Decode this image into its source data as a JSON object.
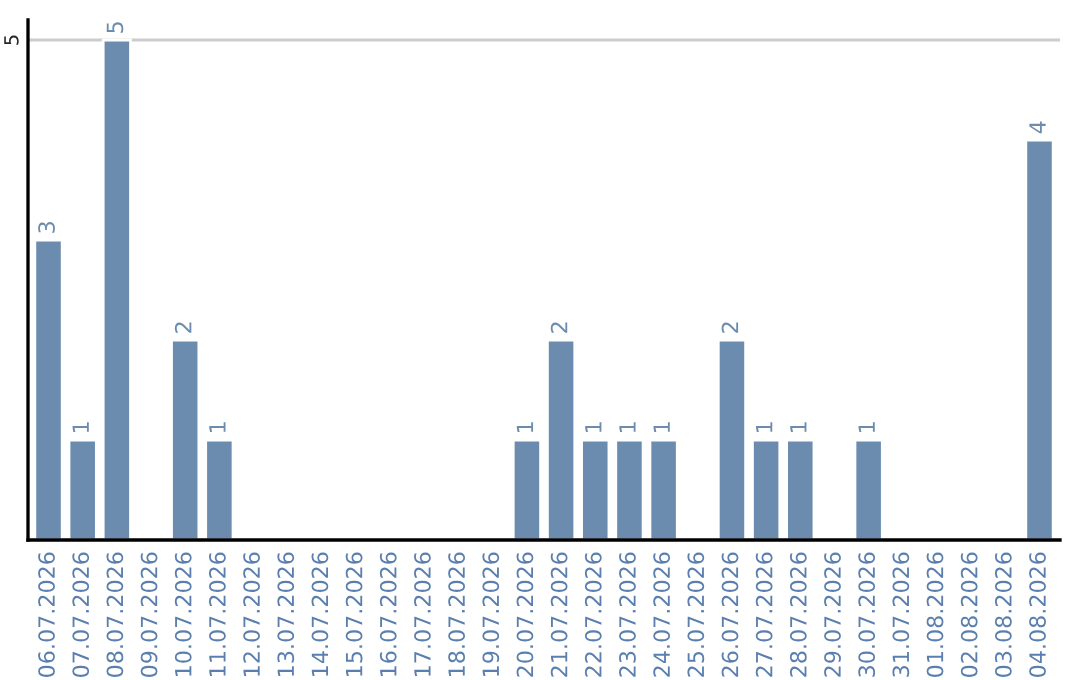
{
  "chart_data": {
    "type": "bar",
    "categories": [
      "06.07.2026",
      "07.07.2026",
      "08.07.2026",
      "09.07.2026",
      "10.07.2026",
      "11.07.2026",
      "12.07.2026",
      "13.07.2026",
      "14.07.2026",
      "15.07.2026",
      "16.07.2026",
      "17.07.2026",
      "18.07.2026",
      "19.07.2026",
      "20.07.2026",
      "21.07.2026",
      "22.07.2026",
      "23.07.2026",
      "24.07.2026",
      "25.07.2026",
      "26.07.2026",
      "27.07.2026",
      "28.07.2026",
      "29.07.2026",
      "30.07.2026",
      "31.07.2026",
      "01.08.2026",
      "02.08.2026",
      "03.08.2026",
      "04.08.2026"
    ],
    "values": [
      3,
      1,
      5,
      0,
      2,
      1,
      0,
      0,
      0,
      0,
      0,
      0,
      0,
      0,
      1,
      2,
      1,
      1,
      1,
      0,
      2,
      1,
      1,
      0,
      1,
      0,
      0,
      0,
      0,
      4
    ],
    "value_labels": [
      "3",
      "1",
      "5",
      null,
      "2",
      "1",
      null,
      null,
      null,
      null,
      null,
      null,
      null,
      null,
      "1",
      "2",
      "1",
      "1",
      "1",
      null,
      "2",
      "1",
      "1",
      null,
      "1",
      null,
      null,
      null,
      null,
      "4"
    ],
    "color": "#6b8cae",
    "ylim": [
      0,
      5.2
    ],
    "yticks": [
      5
    ],
    "grid": "y"
  }
}
